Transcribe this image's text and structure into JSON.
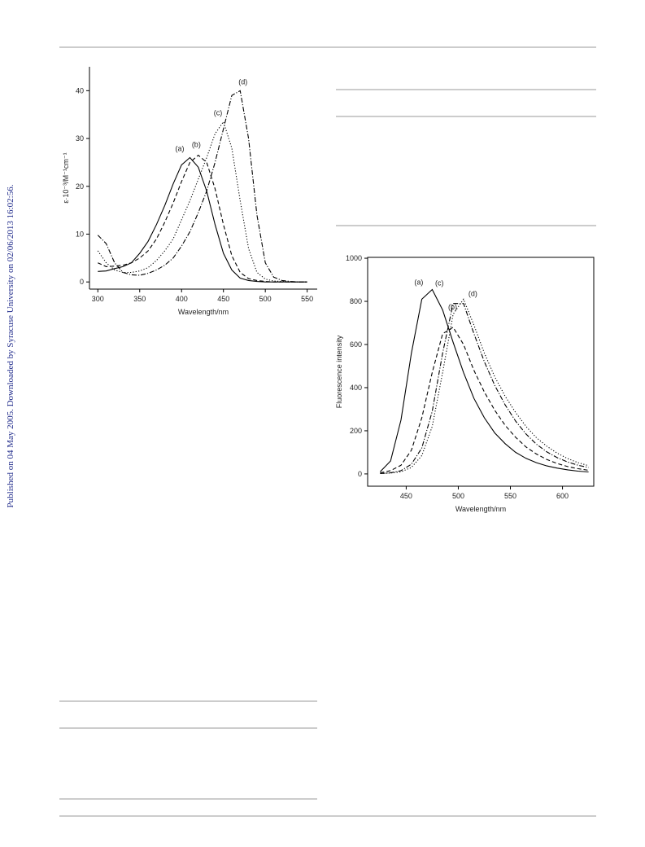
{
  "watermark": "Published on 04 May 2005. Downloaded by Syracuse University on 02/06/2013 16:02:56.",
  "chart_data": [
    {
      "type": "line",
      "frame": "axes",
      "xlabel": "Wavelength/nm",
      "ylabel": "ε·10⁻³/M⁻¹cm⁻¹",
      "x": [
        300,
        310,
        320,
        330,
        340,
        350,
        360,
        370,
        380,
        390,
        400,
        410,
        420,
        430,
        440,
        450,
        460,
        470,
        480,
        490,
        500,
        510,
        520,
        530,
        540,
        550
      ],
      "xlim": [
        290,
        562
      ],
      "xticks": [
        300,
        350,
        400,
        450,
        500,
        550
      ],
      "ylim": [
        -1.5,
        45
      ],
      "yticks": [
        0,
        10,
        20,
        30,
        40
      ],
      "series": [
        {
          "name": "(a)",
          "color": "#000000",
          "line_style": "solid",
          "values": [
            2.2,
            2.3,
            2.8,
            3.2,
            4,
            6,
            8.5,
            12,
            16,
            20.5,
            24.5,
            26,
            24,
            19,
            12,
            6,
            2.5,
            0.8,
            0.3,
            0.1,
            0,
            0,
            0,
            0,
            0,
            0
          ]
        },
        {
          "name": "(b)",
          "color": "#000000",
          "line_style": "dashed",
          "values": [
            4,
            3.2,
            3.3,
            3.5,
            4,
            5,
            6.5,
            9,
            12.5,
            16.5,
            21,
            25,
            26.5,
            25,
            19.5,
            12,
            5.5,
            2,
            0.7,
            0.3,
            0.1,
            0,
            0,
            0,
            0,
            0
          ]
        },
        {
          "name": "(c)",
          "color": "#000000",
          "line_style": "dotted",
          "values": [
            6.5,
            4,
            2.5,
            2,
            2,
            2.3,
            3,
            4.5,
            6.5,
            9,
            13,
            17,
            21.5,
            26,
            31,
            33.5,
            28,
            17,
            7,
            2,
            0.6,
            0.2,
            0.1,
            0,
            0,
            0
          ]
        },
        {
          "name": "(d)",
          "color": "#000000",
          "line_style": "dashdot",
          "values": [
            9.8,
            8,
            4,
            2,
            1.5,
            1.4,
            1.8,
            2.5,
            3.5,
            5,
            7.5,
            10.5,
            14.5,
            19,
            25,
            32,
            39,
            40,
            30,
            14,
            4,
            1,
            0.3,
            0.1,
            0,
            0
          ]
        }
      ]
    },
    {
      "type": "line",
      "frame": "box",
      "xlabel": "Wavelength/nm",
      "ylabel": "Fluorescence intensity",
      "x": [
        425,
        435,
        445,
        455,
        465,
        475,
        485,
        495,
        505,
        515,
        525,
        535,
        545,
        555,
        565,
        575,
        585,
        595,
        605,
        615,
        625
      ],
      "xlim": [
        413,
        630
      ],
      "xticks": [
        450,
        500,
        550,
        600
      ],
      "ylim": [
        -57,
        1004
      ],
      "yticks": [
        0,
        200,
        400,
        600,
        800,
        1000
      ],
      "series": [
        {
          "name": "(a)",
          "color": "#000000",
          "line_style": "solid",
          "values": [
            10,
            60,
            250,
            560,
            810,
            855,
            760,
            610,
            470,
            350,
            260,
            190,
            140,
            100,
            72,
            52,
            37,
            27,
            19,
            13,
            9
          ]
        },
        {
          "name": "(b)",
          "color": "#000000",
          "line_style": "dashed",
          "values": [
            5,
            15,
            40,
            110,
            260,
            470,
            650,
            680,
            600,
            480,
            380,
            295,
            225,
            170,
            125,
            92,
            67,
            48,
            34,
            24,
            17
          ]
        },
        {
          "name": "(c)",
          "color": "#000000",
          "line_style": "dashdot",
          "values": [
            2,
            5,
            15,
            45,
            120,
            290,
            560,
            790,
            790,
            650,
            520,
            410,
            320,
            245,
            185,
            138,
            102,
            75,
            55,
            40,
            30
          ]
        },
        {
          "name": "(d)",
          "color": "#000000",
          "line_style": "dotted",
          "values": [
            2,
            4,
            10,
            30,
            85,
            220,
            470,
            740,
            810,
            690,
            560,
            450,
            360,
            285,
            220,
            168,
            128,
            96,
            71,
            52,
            38
          ]
        }
      ]
    }
  ]
}
